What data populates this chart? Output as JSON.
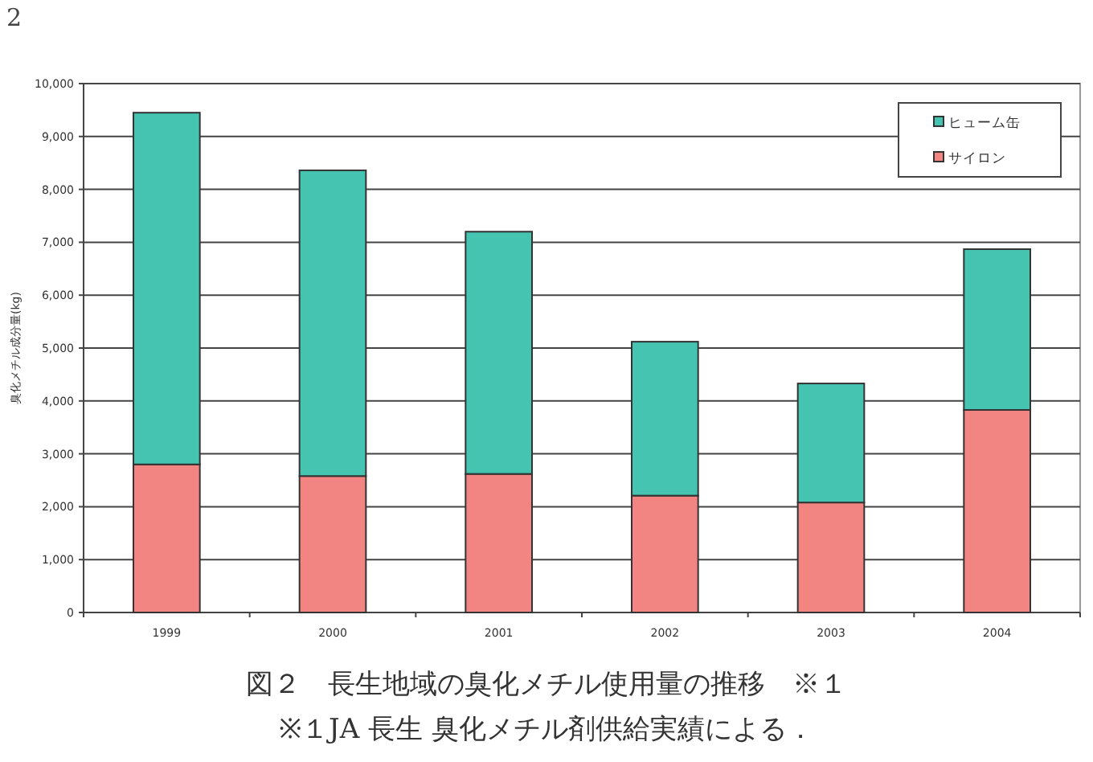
{
  "chart_data": {
    "type": "bar",
    "title": "図２　長生地域の臭化メチル使用量の推移　※１",
    "ylabel": "臭化メチル成分量(kg)",
    "annotations": [
      "2",
      "※１JA 長生 臭化メチル剤供給実績による．"
    ],
    "categories": [
      "1999",
      "2000",
      "2001",
      "2002",
      "2003",
      "2004"
    ],
    "stacked": true,
    "series": [
      {
        "name": "サイロン",
        "color": "#f28582",
        "values": [
          2800,
          2580,
          2620,
          2210,
          2080,
          3830
        ]
      },
      {
        "name": "ヒューム缶",
        "color": "#45c4b2",
        "values": [
          6650,
          5780,
          4580,
          2910,
          2250,
          3040
        ]
      }
    ],
    "ylim": [
      0,
      10000
    ],
    "yticks": [
      {
        "value": 0,
        "label": "0"
      },
      {
        "value": 1000,
        "label": "1,000"
      },
      {
        "value": 2000,
        "label": "2,000"
      },
      {
        "value": 3000,
        "label": "3,000"
      },
      {
        "value": 4000,
        "label": "4,000"
      },
      {
        "value": 5000,
        "label": "5,000"
      },
      {
        "value": 6000,
        "label": "6,000"
      },
      {
        "value": 7000,
        "label": "7,000"
      },
      {
        "value": 8000,
        "label": "8,000"
      },
      {
        "value": 9000,
        "label": "9,000"
      },
      {
        "value": 10000,
        "label": "10,000"
      }
    ],
    "grid": "y",
    "legend": "top right"
  }
}
